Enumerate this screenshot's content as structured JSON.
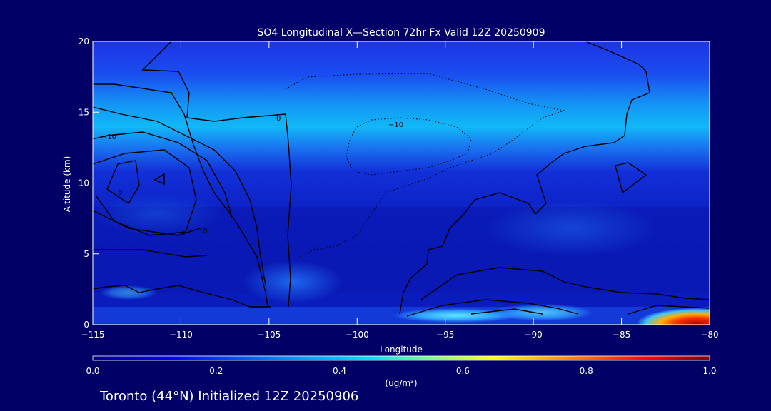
{
  "chart_data": {
    "type": "heatmap",
    "title": "SO4 Longitudinal X—Section 72hr  Fx Valid 12Z 20250909",
    "xlabel": "Longitude",
    "ylabel": "Altitude (km)",
    "xlim": [
      -115,
      -80
    ],
    "ylim": [
      0,
      20
    ],
    "x_ticks": [
      -115,
      -110,
      -105,
      -100,
      -95,
      -90,
      -85,
      -80
    ],
    "x_tick_labels": [
      "−115",
      "−110",
      "−105",
      "−100",
      "−95",
      "−90",
      "−85",
      "−80"
    ],
    "y_ticks": [
      0,
      5,
      10,
      15,
      20
    ],
    "y_tick_labels": [
      "0",
      "5",
      "10",
      "15",
      "20"
    ],
    "colorbar": {
      "label": "(ug/m³)",
      "min": 0.0,
      "max": 1.0,
      "ticks": [
        0.0,
        0.2,
        0.4,
        0.6,
        0.8,
        1.0
      ],
      "tick_labels": [
        "0.0",
        "0.2",
        "0.4",
        "0.6",
        "0.8",
        "1.0"
      ],
      "colors": [
        "#000080",
        "#0000ff",
        "#0080ff",
        "#00e0ff",
        "#80ff80",
        "#ffff00",
        "#ff8000",
        "#ff0000",
        "#800000"
      ]
    },
    "contour_labels": [
      {
        "text": "0",
        "lon": -104.6,
        "alt": 14.7
      },
      {
        "text": "−10",
        "lon": -97.5,
        "alt": 14.1
      },
      {
        "text": "−10",
        "lon": -114.2,
        "alt": 13.4
      },
      {
        "text": "0",
        "lon": -113.7,
        "alt": 9.3
      },
      {
        "text": "10",
        "lon": -108.2,
        "alt": 6.6
      }
    ],
    "footer": "Toronto (44°N) Initialized 12Z 20250906"
  }
}
